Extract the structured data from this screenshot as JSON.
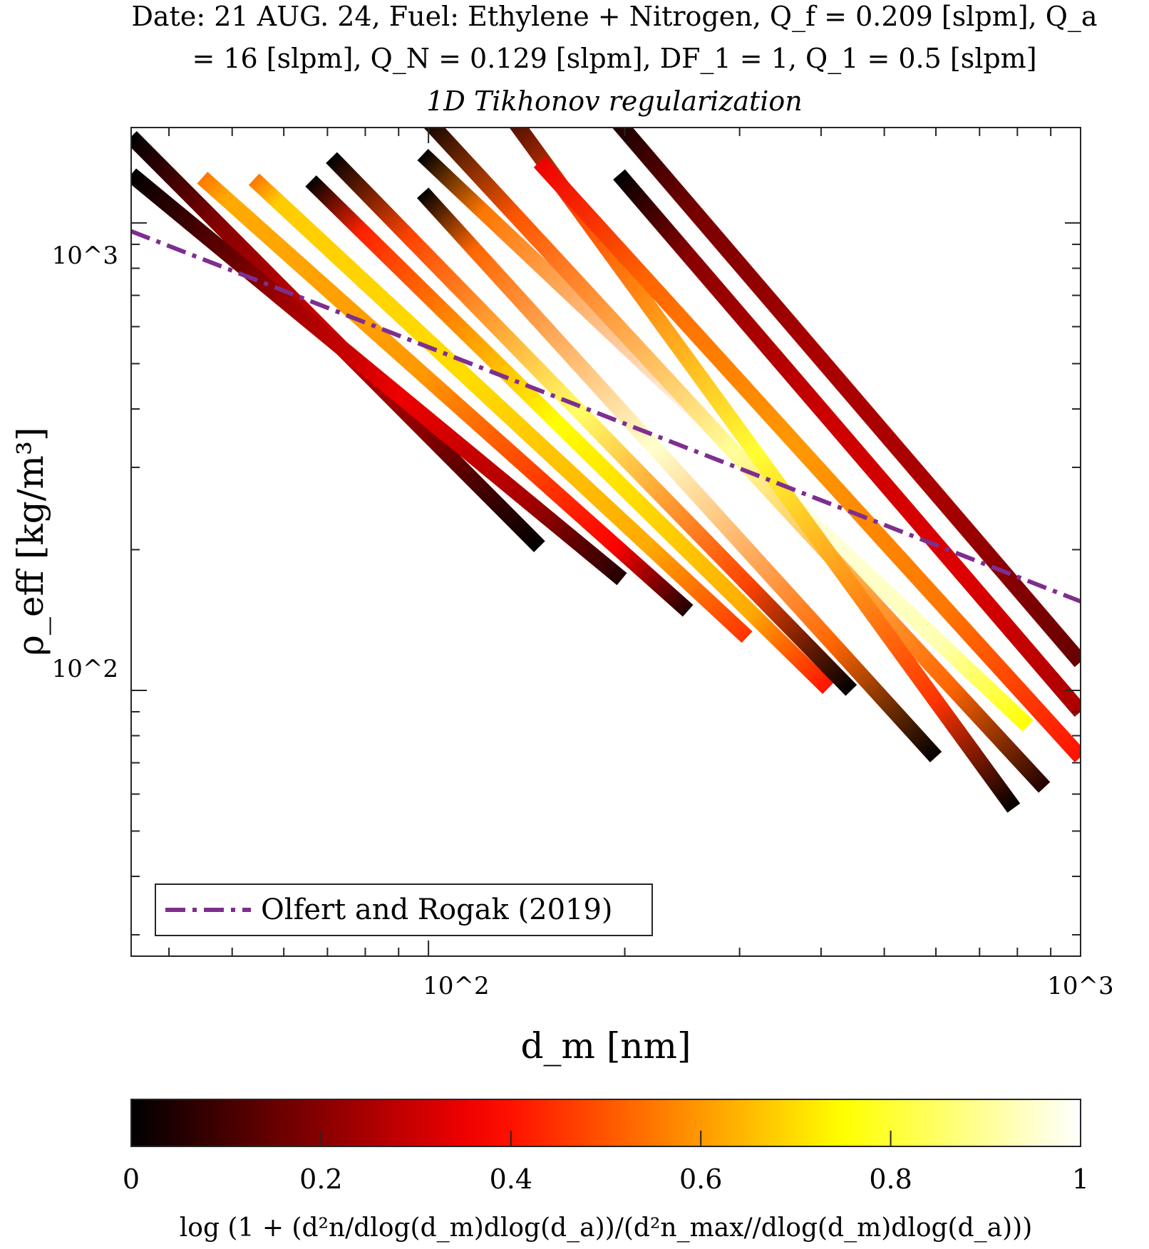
{
  "chart_data": {
    "type": "scatter",
    "title_lines": [
      "Date: 21 AUG. 24, Fuel: Ethylene + Nitrogen, Q_f = 0.209 [slpm], Q_a",
      "= 16 [slpm], Q_N = 0.129 [slpm], DF_1 = 1, Q_1 = 0.5 [slpm]"
    ],
    "subtitle": "1D Tikhonov regularization",
    "xlabel": "d_m [nm]",
    "ylabel": "ρ_eff [kg/m³]",
    "x_scale": "log",
    "y_scale": "log",
    "xlim": [
      35,
      1000
    ],
    "ylim": [
      27,
      1600
    ],
    "x_tick_labels": [
      "10^2",
      "10^3"
    ],
    "y_tick_labels": [
      "10^2",
      "10^3"
    ],
    "legend": {
      "location": "bottom-left",
      "entries": [
        "Olfert and Rogak (2019)"
      ]
    },
    "reference_line": {
      "name": "Olfert and Rogak (2019)",
      "color": "#7e2f8e",
      "style": "dash-dot",
      "x": [
        35,
        1000
      ],
      "y": [
        960,
        155
      ]
    },
    "bands": [
      {
        "x0": 35,
        "y0": 1530,
        "x1": 148,
        "y1": 203,
        "c0": 0.0,
        "c1": 0.0,
        "cmid": 0.3,
        "mid_start": 0.22,
        "mid_end": 0.72
      },
      {
        "x0": 35,
        "y0": 1270,
        "x1": 198,
        "y1": 173,
        "c0": 0.0,
        "c1": 0.05,
        "cmid": 0.35,
        "mid_start": 0.3,
        "mid_end": 0.8
      },
      {
        "x0": 45,
        "y0": 1250,
        "x1": 250,
        "y1": 148,
        "c0": 0.55,
        "c1": 0.05,
        "cmid": 0.6,
        "mid_start": 0.05,
        "mid_end": 0.85
      },
      {
        "x0": 54,
        "y0": 1240,
        "x1": 308,
        "y1": 130,
        "c0": 0.55,
        "c1": 0.45,
        "cmid": 0.7,
        "mid_start": 0.05,
        "mid_end": 0.8
      },
      {
        "x0": 66,
        "y0": 1230,
        "x1": 410,
        "y1": 101,
        "c0": 0.0,
        "c1": 0.4,
        "cmid": 0.75,
        "mid_start": 0.1,
        "mid_end": 0.85
      },
      {
        "x0": 71,
        "y0": 1380,
        "x1": 445,
        "y1": 100,
        "c0": 0.0,
        "c1": 0.0,
        "cmid": 0.85,
        "mid_start": 0.15,
        "mid_end": 0.8
      },
      {
        "x0": 98,
        "y0": 1160,
        "x1": 600,
        "y1": 72,
        "c0": 0.0,
        "c1": 0.0,
        "cmid": 0.95,
        "mid_start": 0.1,
        "mid_end": 0.8
      },
      {
        "x0": 98,
        "y0": 1400,
        "x1": 830,
        "y1": 84,
        "c0": 0.0,
        "c1": 0.75,
        "cmid": 1.0,
        "mid_start": 0.1,
        "mid_end": 0.85
      },
      {
        "x0": 98,
        "y0": 1700,
        "x1": 880,
        "y1": 62,
        "c0": 0.0,
        "c1": 0.05,
        "cmid": 0.9,
        "mid_start": 0.15,
        "mid_end": 0.85
      },
      {
        "x0": 128,
        "y0": 1840,
        "x1": 790,
        "y1": 56,
        "c0": 0.05,
        "c1": 0.0,
        "cmid": 0.8,
        "mid_start": 0.15,
        "mid_end": 0.85
      },
      {
        "x0": 148,
        "y0": 1350,
        "x1": 1000,
        "y1": 72,
        "c0": 0.35,
        "c1": 0.4,
        "cmid": 0.6,
        "mid_start": 0.2,
        "mid_end": 0.75
      },
      {
        "x0": 182,
        "y0": 1840,
        "x1": 1000,
        "y1": 115,
        "c0": 0.0,
        "c1": 0.15,
        "cmid": 0.25,
        "mid_start": 0.2,
        "mid_end": 0.7
      },
      {
        "x0": 196,
        "y0": 1270,
        "x1": 1000,
        "y1": 90,
        "c0": 0.0,
        "c1": 0.25,
        "cmid": 0.3,
        "mid_start": 0.15,
        "mid_end": 0.75
      }
    ],
    "colorbar": {
      "ticks": [
        0,
        0.2,
        0.4,
        0.6,
        0.8,
        1
      ],
      "tick_labels": [
        "0",
        "0.2",
        "0.4",
        "0.6",
        "0.8",
        "1"
      ],
      "label": "log (1 + (d²n/dlog(d_m)dlog(d_a))/(d²n_max//dlog(d_m)dlog(d_a)))",
      "colormap": "hot"
    }
  }
}
